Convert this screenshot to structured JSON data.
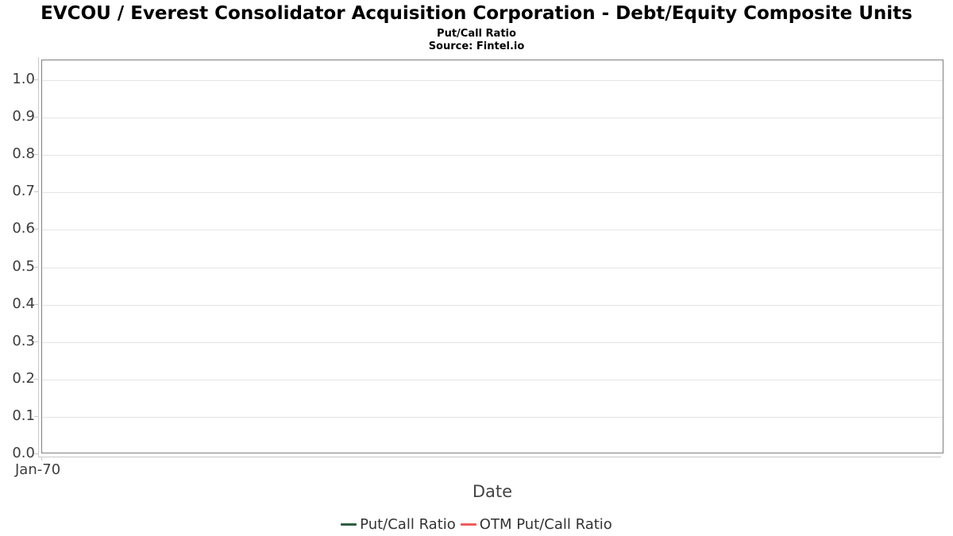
{
  "chart_data": {
    "type": "line",
    "title": "EVCOU / Everest Consolidator Acquisition Corporation - Debt/Equity Composite Units",
    "subtitle": "Put/Call Ratio",
    "source": "Source: Fintel.io",
    "xlabel": "Date",
    "ylabel": "",
    "x_ticks": [
      "Jan-70"
    ],
    "y_tick_labels": [
      "0.0",
      "0.1",
      "0.2",
      "0.3",
      "0.4",
      "0.5",
      "0.6",
      "0.7",
      "0.8",
      "0.9",
      "1.0"
    ],
    "ylim": [
      0.0,
      1.05
    ],
    "grid": true,
    "legend_position": "bottom-center",
    "series": [
      {
        "name": "Put/Call Ratio",
        "color": "#2e5e41",
        "x": [],
        "values": []
      },
      {
        "name": "OTM Put/Call Ratio",
        "color": "#f15b5b",
        "x": [],
        "values": []
      }
    ]
  },
  "colors": {
    "background": "#ffffff",
    "plot_border": "#808080",
    "axis_line": "#c9c9c9",
    "gridline": "#e4e4e4",
    "tick_label": "#3d3d3d",
    "axis_title": "#444444",
    "legend_text": "#333333",
    "title_text": "#000000"
  }
}
